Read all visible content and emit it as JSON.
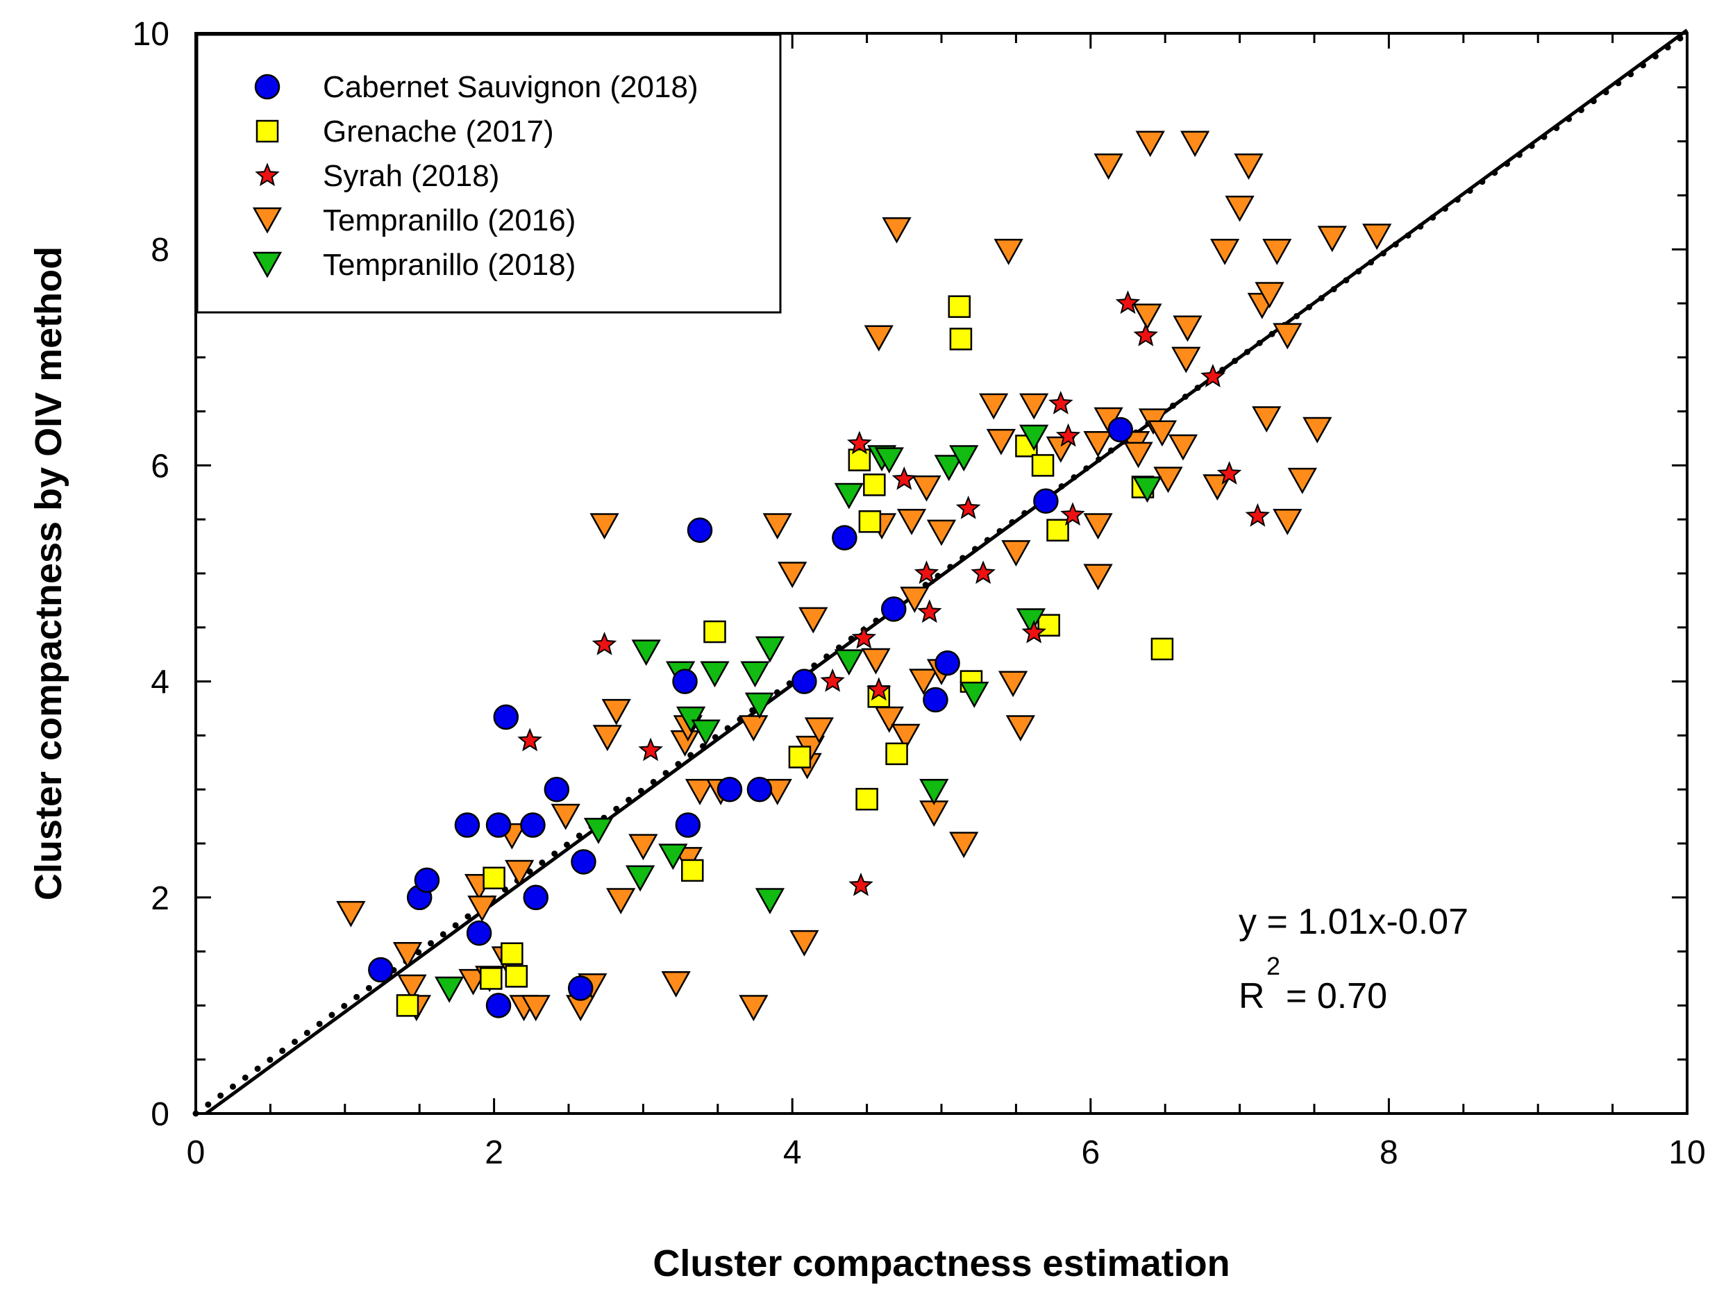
{
  "chart_data": {
    "type": "scatter",
    "title": "",
    "xlabel": "Cluster compactness estimation",
    "ylabel": "Cluster compactness by OIV method",
    "xlim": [
      0,
      10
    ],
    "ylim": [
      0,
      10
    ],
    "xticks": [
      "0",
      "2",
      "4",
      "6",
      "8",
      "10"
    ],
    "yticks": [
      "0",
      "2",
      "4",
      "6",
      "8",
      "10"
    ],
    "legend_position": "top-left",
    "series": [
      {
        "name": "Cabernet Sauvignon (2018)",
        "marker": "circle",
        "color": "#0000ee",
        "points": [
          [
            1.24,
            1.33
          ],
          [
            1.5,
            2.0
          ],
          [
            1.55,
            2.16
          ],
          [
            1.82,
            2.67
          ],
          [
            1.9,
            1.67
          ],
          [
            2.03,
            2.67
          ],
          [
            2.03,
            1.0
          ],
          [
            2.08,
            3.67
          ],
          [
            2.26,
            2.67
          ],
          [
            2.28,
            2.0
          ],
          [
            2.42,
            3.0
          ],
          [
            2.58,
            1.16
          ],
          [
            2.6,
            2.33
          ],
          [
            3.28,
            4.0
          ],
          [
            3.3,
            2.67
          ],
          [
            3.38,
            5.4
          ],
          [
            3.58,
            3.0
          ],
          [
            3.78,
            3.0
          ],
          [
            4.08,
            4.0
          ],
          [
            4.35,
            5.33
          ],
          [
            4.68,
            4.67
          ],
          [
            4.96,
            3.83
          ],
          [
            5.04,
            4.17
          ],
          [
            5.7,
            5.67
          ],
          [
            6.2,
            6.33
          ]
        ]
      },
      {
        "name": "Grenache (2017)",
        "marker": "square",
        "color": "#ffff00",
        "points": [
          [
            1.42,
            1.0
          ],
          [
            1.98,
            1.25
          ],
          [
            2.0,
            2.18
          ],
          [
            2.12,
            1.48
          ],
          [
            2.15,
            1.27
          ],
          [
            3.33,
            2.25
          ],
          [
            3.48,
            4.46
          ],
          [
            4.05,
            3.3
          ],
          [
            4.45,
            6.05
          ],
          [
            4.5,
            2.91
          ],
          [
            4.52,
            5.48
          ],
          [
            4.55,
            5.82
          ],
          [
            4.58,
            3.86
          ],
          [
            4.7,
            3.33
          ],
          [
            5.12,
            7.47
          ],
          [
            5.13,
            7.17
          ],
          [
            5.2,
            4.0
          ],
          [
            5.57,
            6.18
          ],
          [
            5.68,
            6.0
          ],
          [
            5.72,
            4.52
          ],
          [
            5.78,
            5.4
          ],
          [
            6.35,
            5.8
          ],
          [
            6.48,
            4.3
          ]
        ]
      },
      {
        "name": "Syrah (2018)",
        "marker": "star",
        "color": "#ee1111",
        "points": [
          [
            2.24,
            3.45
          ],
          [
            2.74,
            4.34
          ],
          [
            3.05,
            3.36
          ],
          [
            4.27,
            4.0
          ],
          [
            4.45,
            6.2
          ],
          [
            4.46,
            2.11
          ],
          [
            4.48,
            4.4
          ],
          [
            4.58,
            3.92
          ],
          [
            4.75,
            5.87
          ],
          [
            4.9,
            5.0
          ],
          [
            4.92,
            4.64
          ],
          [
            5.18,
            5.6
          ],
          [
            5.28,
            5.0
          ],
          [
            5.62,
            4.45
          ],
          [
            5.8,
            6.57
          ],
          [
            5.85,
            6.27
          ],
          [
            5.88,
            5.54
          ],
          [
            6.25,
            7.5
          ],
          [
            6.37,
            7.2
          ],
          [
            6.82,
            6.82
          ],
          [
            6.93,
            5.92
          ],
          [
            7.12,
            5.53
          ]
        ]
      },
      {
        "name": "Tempranillo (2016)",
        "marker": "triangle-down",
        "color": "#ff8c1a",
        "points": [
          [
            1.04,
            1.85
          ],
          [
            1.42,
            1.47
          ],
          [
            1.45,
            1.17
          ],
          [
            1.48,
            0.98
          ],
          [
            1.86,
            1.22
          ],
          [
            1.9,
            2.1
          ],
          [
            1.92,
            1.9
          ],
          [
            1.97,
            1.25
          ],
          [
            2.08,
            1.43
          ],
          [
            2.12,
            2.57
          ],
          [
            2.17,
            2.23
          ],
          [
            2.2,
            0.98
          ],
          [
            2.28,
            0.98
          ],
          [
            2.48,
            2.75
          ],
          [
            2.58,
            0.98
          ],
          [
            2.66,
            1.18
          ],
          [
            2.74,
            5.44
          ],
          [
            2.76,
            3.48
          ],
          [
            2.82,
            3.72
          ],
          [
            2.85,
            1.97
          ],
          [
            3.0,
            2.47
          ],
          [
            3.22,
            1.2
          ],
          [
            3.28,
            3.43
          ],
          [
            3.3,
            3.57
          ],
          [
            3.38,
            2.98
          ],
          [
            3.52,
            2.98
          ],
          [
            3.3,
            2.35
          ],
          [
            3.74,
            3.57
          ],
          [
            3.74,
            0.98
          ],
          [
            3.9,
            2.98
          ],
          [
            3.9,
            5.44
          ],
          [
            4.0,
            4.99
          ],
          [
            4.08,
            1.58
          ],
          [
            4.1,
            3.22
          ],
          [
            4.12,
            3.38
          ],
          [
            4.14,
            4.57
          ],
          [
            4.18,
            3.55
          ],
          [
            4.56,
            4.19
          ],
          [
            4.58,
            7.18
          ],
          [
            4.6,
            5.44
          ],
          [
            4.65,
            3.65
          ],
          [
            4.7,
            8.18
          ],
          [
            4.76,
            3.49
          ],
          [
            4.8,
            5.48
          ],
          [
            4.82,
            4.76
          ],
          [
            4.88,
            4.0
          ],
          [
            4.9,
            5.79
          ],
          [
            4.95,
            2.78
          ],
          [
            5.0,
            5.38
          ],
          [
            5.0,
            4.09
          ],
          [
            5.15,
            2.49
          ],
          [
            5.35,
            6.55
          ],
          [
            5.4,
            6.22
          ],
          [
            5.45,
            7.98
          ],
          [
            5.48,
            3.98
          ],
          [
            5.5,
            5.19
          ],
          [
            5.53,
            3.57
          ],
          [
            5.62,
            6.55
          ],
          [
            5.8,
            6.15
          ],
          [
            6.05,
            4.97
          ],
          [
            6.05,
            5.44
          ],
          [
            6.05,
            6.2
          ],
          [
            6.12,
            6.42
          ],
          [
            6.12,
            8.77
          ],
          [
            6.3,
            6.2
          ],
          [
            6.32,
            6.1
          ],
          [
            6.38,
            7.38
          ],
          [
            6.4,
            8.98
          ],
          [
            6.42,
            6.41
          ],
          [
            6.48,
            6.3
          ],
          [
            6.52,
            5.87
          ],
          [
            6.62,
            6.17
          ],
          [
            6.64,
            6.98
          ],
          [
            6.65,
            7.27
          ],
          [
            6.7,
            8.98
          ],
          [
            6.85,
            5.8
          ],
          [
            6.9,
            7.98
          ],
          [
            7.0,
            8.38
          ],
          [
            7.06,
            8.77
          ],
          [
            7.15,
            7.48
          ],
          [
            7.18,
            6.43
          ],
          [
            7.2,
            7.58
          ],
          [
            7.25,
            7.98
          ],
          [
            7.32,
            5.48
          ],
          [
            7.32,
            7.2
          ],
          [
            7.42,
            5.86
          ],
          [
            7.52,
            6.33
          ],
          [
            7.62,
            8.1
          ],
          [
            7.92,
            8.12
          ]
        ]
      },
      {
        "name": "Tempranillo (2018)",
        "marker": "triangle-down",
        "color": "#11bb11",
        "points": [
          [
            1.7,
            1.15
          ],
          [
            2.7,
            2.62
          ],
          [
            2.98,
            2.18
          ],
          [
            3.02,
            4.27
          ],
          [
            3.2,
            2.38
          ],
          [
            3.25,
            4.07
          ],
          [
            3.32,
            3.65
          ],
          [
            3.42,
            3.53
          ],
          [
            3.48,
            4.07
          ],
          [
            3.75,
            4.07
          ],
          [
            3.78,
            3.78
          ],
          [
            3.85,
            4.3
          ],
          [
            3.85,
            1.97
          ],
          [
            4.38,
            5.72
          ],
          [
            4.38,
            4.18
          ],
          [
            4.6,
            6.07
          ],
          [
            4.65,
            6.05
          ],
          [
            4.95,
            2.98
          ],
          [
            5.05,
            5.98
          ],
          [
            5.15,
            6.07
          ],
          [
            5.22,
            3.88
          ],
          [
            5.6,
            4.56
          ],
          [
            5.62,
            6.26
          ],
          [
            6.38,
            5.78
          ]
        ]
      }
    ],
    "fit_line": {
      "slope": 1.01,
      "intercept": -0.07,
      "style": "solid"
    },
    "identity_line": {
      "slope": 1,
      "intercept": 0,
      "style": "dotted"
    },
    "annotation": {
      "equation": "y = 1.01x-0.07",
      "r2_prefix": "R",
      "r2_sup": "2",
      "r2_value": "= 0.70"
    }
  },
  "colors": {
    "marker_outline": "#000000",
    "axis": "#000000"
  }
}
